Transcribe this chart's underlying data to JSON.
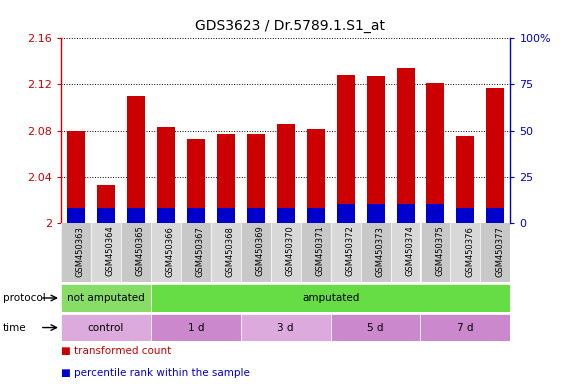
{
  "title": "GDS3623 / Dr.5789.1.S1_at",
  "samples": [
    "GSM450363",
    "GSM450364",
    "GSM450365",
    "GSM450366",
    "GSM450367",
    "GSM450368",
    "GSM450369",
    "GSM450370",
    "GSM450371",
    "GSM450372",
    "GSM450373",
    "GSM450374",
    "GSM450375",
    "GSM450376",
    "GSM450377"
  ],
  "red_values": [
    2.08,
    2.033,
    2.11,
    2.083,
    2.073,
    2.077,
    2.077,
    2.086,
    2.081,
    2.128,
    2.127,
    2.134,
    2.121,
    2.075,
    2.117
  ],
  "blue_values": [
    0.08,
    0.08,
    0.08,
    0.08,
    0.08,
    0.08,
    0.08,
    0.08,
    0.08,
    0.1,
    0.1,
    0.1,
    0.1,
    0.08,
    0.08
  ],
  "ylim": [
    2.0,
    2.16
  ],
  "yticks": [
    2.0,
    2.04,
    2.08,
    2.12,
    2.16
  ],
  "ytick_labels": [
    "2",
    "2.04",
    "2.08",
    "2.12",
    "2.16"
  ],
  "right_yticks": [
    0,
    25,
    50,
    75,
    100
  ],
  "right_ytick_labels": [
    "0",
    "25",
    "50",
    "75",
    "100%"
  ],
  "bar_color": "#cc0000",
  "blue_color": "#0000cc",
  "plot_bg": "#ffffff",
  "grid_color": "#000000",
  "protocol_row": [
    {
      "label": "not amputated",
      "start": 0,
      "end": 3,
      "color": "#88dd66"
    },
    {
      "label": "amputated",
      "start": 3,
      "end": 15,
      "color": "#66dd44"
    }
  ],
  "time_row": [
    {
      "label": "control",
      "start": 0,
      "end": 3,
      "color": "#ddaadd"
    },
    {
      "label": "1 d",
      "start": 3,
      "end": 6,
      "color": "#cc88cc"
    },
    {
      "label": "3 d",
      "start": 6,
      "end": 9,
      "color": "#ddaadd"
    },
    {
      "label": "5 d",
      "start": 9,
      "end": 12,
      "color": "#cc88cc"
    },
    {
      "label": "7 d",
      "start": 12,
      "end": 15,
      "color": "#cc88cc"
    }
  ],
  "legend_items": [
    {
      "label": "transformed count",
      "color": "#cc0000"
    },
    {
      "label": "percentile rank within the sample",
      "color": "#0000cc"
    }
  ]
}
